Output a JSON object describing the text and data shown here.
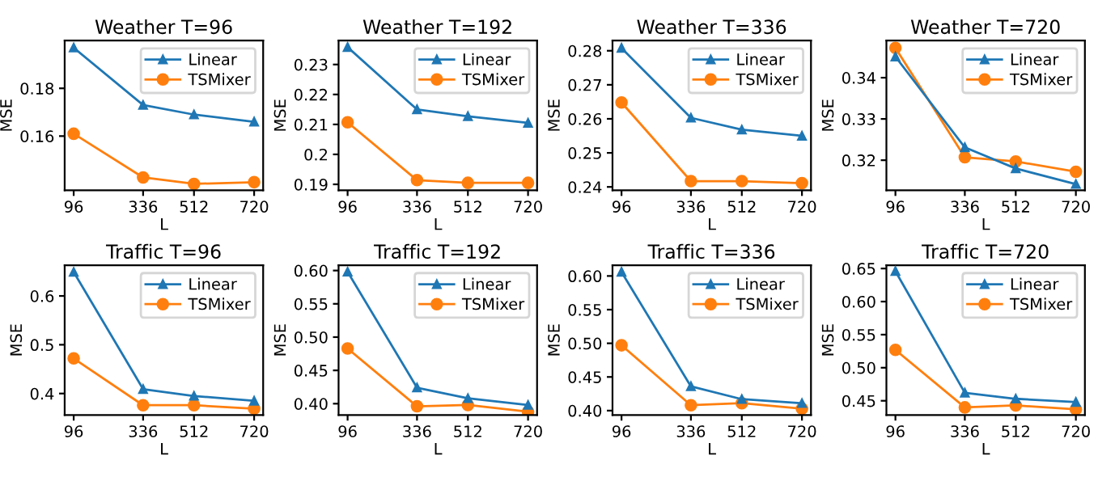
{
  "chart_data": [
    {
      "type": "line",
      "title": "Weather T=96",
      "xlabel": "L",
      "ylabel": "MSE",
      "x": [
        96,
        336,
        512,
        720
      ],
      "xlim": [
        64.8,
        751.2
      ],
      "xticks": [
        96,
        336,
        512,
        720
      ],
      "ylim": [
        0.1373,
        0.2
      ],
      "yticks": [
        0.16,
        0.18
      ],
      "legend": "top right",
      "grid": false,
      "series": [
        {
          "name": "Linear",
          "color": "#1f77b4",
          "marker": "triangle",
          "values": [
            0.197,
            0.173,
            0.169,
            0.166
          ]
        },
        {
          "name": "TSMixer",
          "color": "#ff7f0e",
          "marker": "circle",
          "values": [
            0.161,
            0.1427,
            0.14,
            0.1407
          ]
        }
      ]
    },
    {
      "type": "line",
      "title": "Weather T=192",
      "xlabel": "L",
      "ylabel": "MSE",
      "x": [
        96,
        336,
        512,
        720
      ],
      "xlim": [
        64.8,
        751.2
      ],
      "xticks": [
        96,
        336,
        512,
        720
      ],
      "ylim": [
        0.188,
        0.238
      ],
      "yticks": [
        0.19,
        0.2,
        0.21,
        0.22,
        0.23
      ],
      "legend": "top right",
      "grid": false,
      "series": [
        {
          "name": "Linear",
          "color": "#1f77b4",
          "marker": "triangle",
          "values": [
            0.2358,
            0.215,
            0.2127,
            0.2105
          ]
        },
        {
          "name": "TSMixer",
          "color": "#ff7f0e",
          "marker": "circle",
          "values": [
            0.2107,
            0.1914,
            0.1905,
            0.1905
          ]
        }
      ]
    },
    {
      "type": "line",
      "title": "Weather T=336",
      "xlabel": "L",
      "ylabel": "MSE",
      "x": [
        96,
        336,
        512,
        720
      ],
      "xlim": [
        64.8,
        751.2
      ],
      "xticks": [
        96,
        336,
        512,
        720
      ],
      "ylim": [
        0.239,
        0.283
      ],
      "yticks": [
        0.24,
        0.25,
        0.26,
        0.27,
        0.28
      ],
      "legend": "top right",
      "grid": false,
      "series": [
        {
          "name": "Linear",
          "color": "#1f77b4",
          "marker": "triangle",
          "values": [
            0.2808,
            0.2603,
            0.2568,
            0.255
          ]
        },
        {
          "name": "TSMixer",
          "color": "#ff7f0e",
          "marker": "circle",
          "values": [
            0.2648,
            0.2417,
            0.2417,
            0.2411
          ]
        }
      ]
    },
    {
      "type": "line",
      "title": "Weather T=720",
      "xlabel": "L",
      "ylabel": "MSE",
      "x": [
        96,
        336,
        512,
        720
      ],
      "xlim": [
        64.8,
        751.2
      ],
      "xticks": [
        96,
        336,
        512,
        720
      ],
      "ylim": [
        0.3127,
        0.349
      ],
      "yticks": [
        0.32,
        0.33,
        0.34
      ],
      "legend": "top right",
      "grid": false,
      "series": [
        {
          "name": "Linear",
          "color": "#1f77b4",
          "marker": "triangle",
          "values": [
            0.3451,
            0.3231,
            0.318,
            0.3142
          ]
        },
        {
          "name": "TSMixer",
          "color": "#ff7f0e",
          "marker": "circle",
          "values": [
            0.3472,
            0.3207,
            0.3197,
            0.3172
          ]
        }
      ]
    },
    {
      "type": "line",
      "title": "Traffic T=96",
      "xlabel": "L",
      "ylabel": "MSE",
      "x": [
        96,
        336,
        512,
        720
      ],
      "xlim": [
        64.8,
        751.2
      ],
      "xticks": [
        96,
        336,
        512,
        720
      ],
      "ylim": [
        0.356,
        0.663
      ],
      "yticks": [
        0.4,
        0.5,
        0.6
      ],
      "legend": "top right",
      "grid": false,
      "series": [
        {
          "name": "Linear",
          "color": "#1f77b4",
          "marker": "triangle",
          "values": [
            0.649,
            0.409,
            0.395,
            0.385
          ]
        },
        {
          "name": "TSMixer",
          "color": "#ff7f0e",
          "marker": "circle",
          "values": [
            0.472,
            0.376,
            0.376,
            0.369
          ]
        }
      ]
    },
    {
      "type": "line",
      "title": "Traffic T=192",
      "xlabel": "L",
      "ylabel": "MSE",
      "x": [
        96,
        336,
        512,
        720
      ],
      "xlim": [
        64.8,
        751.2
      ],
      "xticks": [
        96,
        336,
        512,
        720
      ],
      "ylim": [
        0.383,
        0.608
      ],
      "yticks": [
        {
          "value": 0.4,
          "label": "0.40"
        },
        {
          "value": 0.45,
          "label": "0.45"
        },
        {
          "value": 0.5,
          "label": "0.50"
        },
        {
          "value": 0.55,
          "label": "0.55"
        },
        {
          "value": 0.6,
          "label": "0.60"
        }
      ],
      "legend": "top right",
      "grid": false,
      "series": [
        {
          "name": "Linear",
          "color": "#1f77b4",
          "marker": "triangle",
          "values": [
            0.598,
            0.424,
            0.408,
            0.398
          ]
        },
        {
          "name": "TSMixer",
          "color": "#ff7f0e",
          "marker": "circle",
          "values": [
            0.483,
            0.396,
            0.398,
            0.388
          ]
        }
      ]
    },
    {
      "type": "line",
      "title": "Traffic T=336",
      "xlabel": "L",
      "ylabel": "MSE",
      "x": [
        96,
        336,
        512,
        720
      ],
      "xlim": [
        64.8,
        751.2
      ],
      "xticks": [
        96,
        336,
        512,
        720
      ],
      "ylim": [
        0.3935,
        0.616
      ],
      "yticks": [
        {
          "value": 0.4,
          "label": "0.40"
        },
        {
          "value": 0.45,
          "label": "0.45"
        },
        {
          "value": 0.5,
          "label": "0.50"
        },
        {
          "value": 0.55,
          "label": "0.55"
        },
        {
          "value": 0.6,
          "label": "0.60"
        }
      ],
      "legend": "top right",
      "grid": false,
      "series": [
        {
          "name": "Linear",
          "color": "#1f77b4",
          "marker": "triangle",
          "values": [
            0.606,
            0.436,
            0.417,
            0.411
          ]
        },
        {
          "name": "TSMixer",
          "color": "#ff7f0e",
          "marker": "circle",
          "values": [
            0.497,
            0.408,
            0.411,
            0.403
          ]
        }
      ]
    },
    {
      "type": "line",
      "title": "Traffic T=720",
      "xlabel": "L",
      "ylabel": "MSE",
      "x": [
        96,
        336,
        512,
        720
      ],
      "xlim": [
        64.8,
        751.2
      ],
      "xticks": [
        96,
        336,
        512,
        720
      ],
      "ylim": [
        0.4285,
        0.655
      ],
      "yticks": [
        0.45,
        {
          "value": 0.5,
          "label": "0.50"
        },
        0.55,
        {
          "value": 0.6,
          "label": "0.60"
        },
        0.65
      ],
      "legend": "top right",
      "grid": false,
      "series": [
        {
          "name": "Linear",
          "color": "#1f77b4",
          "marker": "triangle",
          "values": [
            0.646,
            0.462,
            0.453,
            0.448
          ]
        },
        {
          "name": "TSMixer",
          "color": "#ff7f0e",
          "marker": "circle",
          "values": [
            0.527,
            0.44,
            0.443,
            0.437
          ]
        }
      ]
    }
  ]
}
